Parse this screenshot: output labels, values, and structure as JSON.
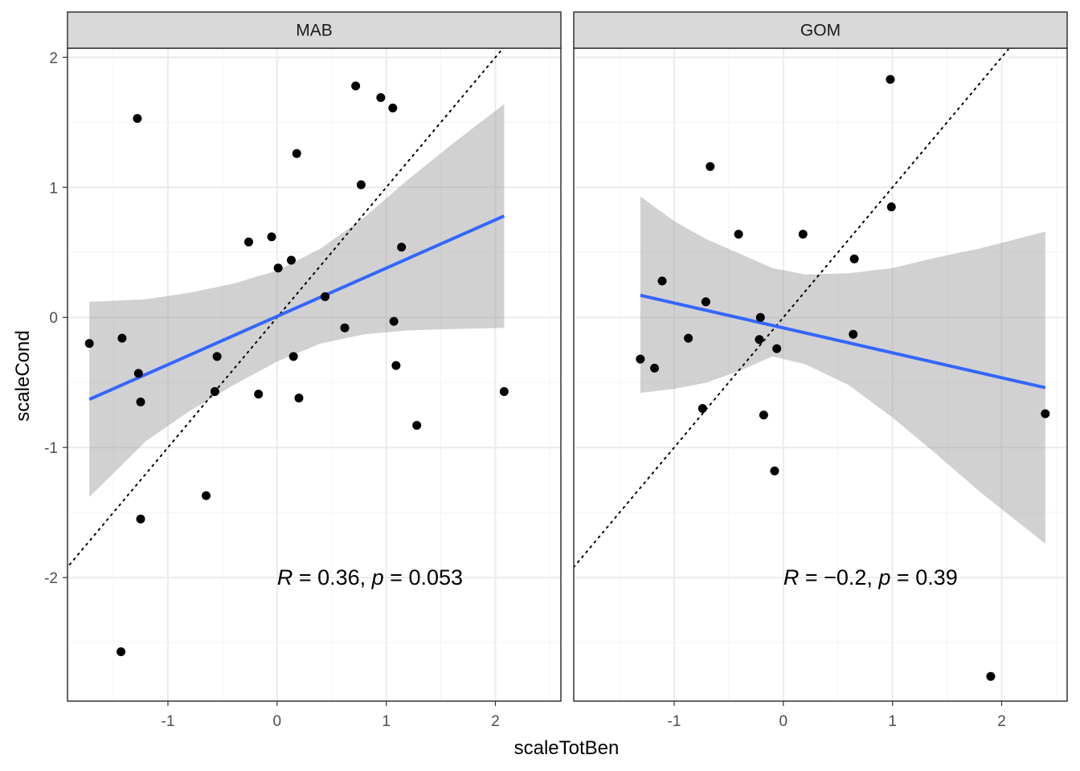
{
  "chart_data": {
    "type": "scatter",
    "xlabel": "scaleTotBen",
    "ylabel": "scaleCond",
    "xlim": [
      -1.92,
      2.6
    ],
    "ylim": [
      -2.95,
      2.07
    ],
    "x_ticks": [
      -1,
      0,
      1,
      2
    ],
    "y_ticks": [
      -2,
      -1,
      0,
      1,
      2
    ],
    "x_tick_labels": [
      "-1",
      "0",
      "1",
      "2"
    ],
    "y_tick_labels": [
      "-2",
      "-1",
      "0",
      "1",
      "2"
    ],
    "grid": true,
    "reference_line": "y = x (dotted)",
    "colors": {
      "points": "#000000",
      "fit_line": "#3366FF",
      "ribbon": "#999999",
      "strip": "#d9d9d9",
      "grid_major": "#ebebeb"
    },
    "panels": [
      {
        "name": "MAB",
        "annotation": {
          "R": "0.36",
          "p": "0.053",
          "label_x": 0.0,
          "label_y": -2.0
        },
        "points": [
          [
            -1.72,
            -0.2
          ],
          [
            -1.42,
            -0.16
          ],
          [
            -1.27,
            -0.43
          ],
          [
            -1.25,
            -0.65
          ],
          [
            -1.28,
            1.53
          ],
          [
            -1.25,
            -1.55
          ],
          [
            -1.43,
            -2.57
          ],
          [
            -0.65,
            -1.37
          ],
          [
            -0.57,
            -0.57
          ],
          [
            -0.55,
            -0.3
          ],
          [
            -0.26,
            0.58
          ],
          [
            -0.17,
            -0.59
          ],
          [
            -0.05,
            0.62
          ],
          [
            0.01,
            0.38
          ],
          [
            0.13,
            0.44
          ],
          [
            0.15,
            -0.3
          ],
          [
            0.18,
            1.26
          ],
          [
            0.2,
            -0.62
          ],
          [
            0.44,
            0.16
          ],
          [
            0.62,
            -0.08
          ],
          [
            0.72,
            1.78
          ],
          [
            0.77,
            1.02
          ],
          [
            0.95,
            1.69
          ],
          [
            1.06,
            1.61
          ],
          [
            1.07,
            -0.03
          ],
          [
            1.09,
            -0.37
          ],
          [
            1.14,
            0.54
          ],
          [
            1.28,
            -0.83
          ],
          [
            2.08,
            -0.57
          ]
        ],
        "fit": {
          "x": [
            -1.72,
            2.08
          ],
          "y": [
            -0.63,
            0.78
          ]
        },
        "band": {
          "x": [
            -1.72,
            -1.2,
            -0.8,
            -0.4,
            0.0,
            0.4,
            0.8,
            1.2,
            1.6,
            2.08
          ],
          "lower": [
            -1.38,
            -0.95,
            -0.72,
            -0.52,
            -0.34,
            -0.2,
            -0.13,
            -0.1,
            -0.09,
            -0.08
          ],
          "upper": [
            0.12,
            0.14,
            0.19,
            0.26,
            0.36,
            0.53,
            0.77,
            1.06,
            1.33,
            1.64
          ]
        },
        "ref_x": [
          -1.9,
          2.06
        ]
      },
      {
        "name": "GOM",
        "annotation": {
          "R": "−0.2",
          "p": "0.39",
          "label_x": 0.0,
          "label_y": -2.0
        },
        "points": [
          [
            -1.31,
            -0.32
          ],
          [
            -1.18,
            -0.39
          ],
          [
            -1.11,
            0.28
          ],
          [
            -0.87,
            -0.16
          ],
          [
            -0.74,
            -0.7
          ],
          [
            -0.71,
            0.12
          ],
          [
            -0.67,
            1.16
          ],
          [
            -0.41,
            0.64
          ],
          [
            -0.22,
            -0.17
          ],
          [
            -0.21,
            0.0
          ],
          [
            -0.18,
            -0.75
          ],
          [
            -0.08,
            -1.18
          ],
          [
            -0.06,
            -0.24
          ],
          [
            0.18,
            0.64
          ],
          [
            0.64,
            -0.13
          ],
          [
            0.65,
            0.45
          ],
          [
            0.98,
            1.83
          ],
          [
            0.99,
            0.85
          ],
          [
            1.9,
            -2.76
          ],
          [
            2.4,
            -0.74
          ]
        ],
        "fit": {
          "x": [
            -1.31,
            2.4
          ],
          "y": [
            0.17,
            -0.54
          ]
        },
        "band": {
          "x": [
            -1.31,
            -1.0,
            -0.7,
            -0.4,
            -0.1,
            0.2,
            0.6,
            1.0,
            1.4,
            1.8,
            2.4
          ],
          "lower": [
            -0.58,
            -0.55,
            -0.5,
            -0.41,
            -0.3,
            -0.36,
            -0.52,
            -0.77,
            -1.05,
            -1.34,
            -1.74
          ],
          "upper": [
            0.93,
            0.74,
            0.6,
            0.49,
            0.38,
            0.33,
            0.34,
            0.38,
            0.46,
            0.53,
            0.66
          ]
        },
        "ref_x": [
          -1.92,
          2.06
        ]
      }
    ]
  }
}
